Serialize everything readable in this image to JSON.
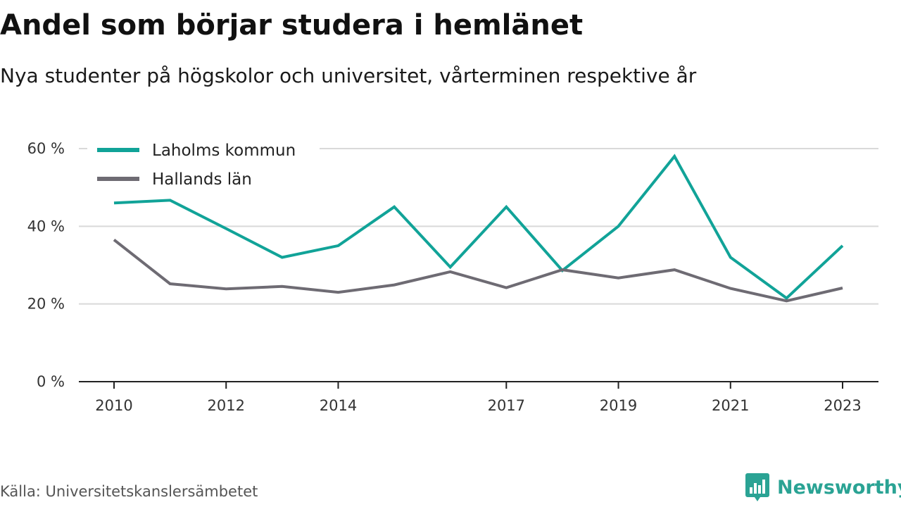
{
  "title": "Andel som börjar studera i hemlänet",
  "subtitle": "Nya studenter på högskolor och universitet, vårterminen respektive år",
  "source": "Källa: Universitetskanslersämbetet",
  "brand": {
    "name": "Newsworthy",
    "logo_icon": "bar-chart-speech-bubble-icon",
    "color": "#2aa394"
  },
  "chart_data": {
    "type": "line",
    "title": "Andel som börjar studera i hemlänet",
    "subtitle": "Nya studenter på högskolor och universitet, vårterminen respektive år",
    "x": [
      2010,
      2011,
      2012,
      2013,
      2014,
      2015,
      2016,
      2017,
      2018,
      2019,
      2020,
      2021,
      2022,
      2023
    ],
    "x_tick_labels": [
      "2010",
      "2012",
      "2014",
      "2017",
      "2019",
      "2021",
      "2023"
    ],
    "y_tick_labels": [
      "0 %",
      "20 %",
      "40 %",
      "60 %"
    ],
    "y_ticks": [
      0,
      20,
      40,
      60
    ],
    "ylim": [
      0,
      60
    ],
    "xlim": [
      2010,
      2023
    ],
    "y_unit": "%",
    "grid": true,
    "legend_position": "top-left",
    "series": [
      {
        "name": "Laholms kommun",
        "color": "#11a398",
        "values": [
          46,
          46.7,
          39.4,
          32,
          35,
          45,
          29.5,
          45,
          28.6,
          40,
          58,
          32,
          21.5,
          35
        ]
      },
      {
        "name": "Hallands län",
        "color": "#6e6b73",
        "values": [
          36.5,
          25.2,
          23.9,
          24.5,
          23,
          24.9,
          28.3,
          24.2,
          28.8,
          26.7,
          28.8,
          24,
          20.8,
          24.1
        ]
      }
    ]
  }
}
